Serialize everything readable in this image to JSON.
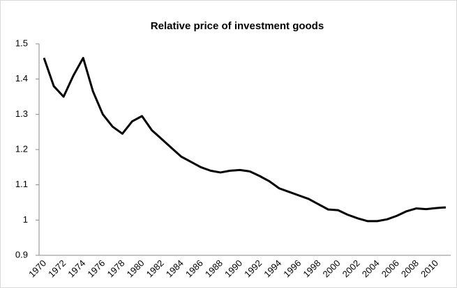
{
  "chart_data": {
    "type": "line",
    "title": "Relative price of investment goods",
    "categories": [
      "1970",
      null,
      "1972",
      null,
      "1974",
      null,
      "1976",
      null,
      "1978",
      null,
      "1980",
      null,
      "1982",
      null,
      "1984",
      null,
      "1986",
      null,
      "1988",
      null,
      "1990",
      null,
      "1992",
      null,
      "1994",
      null,
      "1996",
      null,
      "1998",
      null,
      "2000",
      null,
      "2002",
      null,
      "2004",
      null,
      "2006",
      null,
      "2008",
      null,
      "2010",
      null
    ],
    "values": [
      1.46,
      1.38,
      1.35,
      1.41,
      1.46,
      1.365,
      1.3,
      1.265,
      1.245,
      1.28,
      1.295,
      1.255,
      1.23,
      1.205,
      1.18,
      1.165,
      1.15,
      1.14,
      1.135,
      1.14,
      1.142,
      1.138,
      1.125,
      1.11,
      1.09,
      1.08,
      1.07,
      1.06,
      1.045,
      1.03,
      1.028,
      1.015,
      1.005,
      0.997,
      0.997,
      1.002,
      1.012,
      1.025,
      1.033,
      1.031,
      1.034,
      1.036
    ],
    "color": "#000000",
    "ylim": [
      0.9,
      1.5
    ],
    "yticks": [
      0.9,
      1,
      1.1,
      1.2,
      1.3,
      1.4,
      1.5
    ],
    "grid": false
  }
}
